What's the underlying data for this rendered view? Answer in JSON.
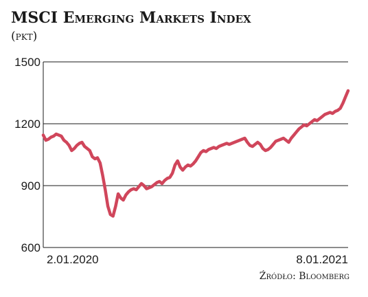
{
  "chart_data": {
    "type": "line",
    "title": "MSCI Emerging Markets Index",
    "subtitle": "(pkt)",
    "source": "Źródło: Bloomberg",
    "ylim": [
      600,
      1500
    ],
    "y_ticks": [
      "1500",
      "1200",
      "900",
      "600"
    ],
    "x_ticks": [
      "2.01.2020",
      "8.01.2021"
    ],
    "grid": true,
    "line_color": "#d0465b",
    "series": [
      {
        "values": [
          1145,
          1120,
          1125,
          1135,
          1140,
          1150,
          1145,
          1140,
          1120,
          1110,
          1095,
          1070,
          1080,
          1095,
          1105,
          1110,
          1090,
          1080,
          1070,
          1040,
          1030,
          1035,
          1010,
          950,
          880,
          800,
          760,
          752,
          800,
          860,
          840,
          830,
          855,
          870,
          880,
          885,
          880,
          895,
          910,
          900,
          885,
          890,
          895,
          905,
          915,
          920,
          910,
          925,
          935,
          940,
          960,
          1000,
          1020,
          990,
          975,
          990,
          1000,
          995,
          1005,
          1020,
          1040,
          1060,
          1070,
          1065,
          1075,
          1080,
          1085,
          1080,
          1090,
          1095,
          1100,
          1105,
          1100,
          1105,
          1110,
          1115,
          1120,
          1125,
          1130,
          1110,
          1095,
          1090,
          1100,
          1110,
          1100,
          1080,
          1070,
          1075,
          1085,
          1100,
          1115,
          1120,
          1125,
          1130,
          1120,
          1110,
          1130,
          1145,
          1160,
          1175,
          1185,
          1195,
          1190,
          1200,
          1210,
          1220,
          1215,
          1225,
          1235,
          1245,
          1250,
          1255,
          1250,
          1260,
          1265,
          1275,
          1300,
          1330,
          1360
        ]
      }
    ]
  }
}
